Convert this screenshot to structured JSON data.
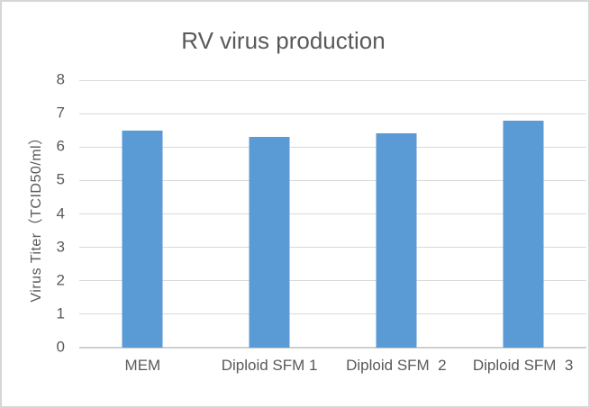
{
  "chart_data": {
    "type": "bar",
    "title": "RV virus production",
    "categories": [
      "MEM",
      "Diploid SFM 1",
      "Diploid SFM  2",
      "Diploid SFM  3"
    ],
    "values": [
      6.5,
      6.3,
      6.4,
      6.8
    ],
    "xlabel": "",
    "ylabel": "Virus Titer（TCID50/ml）",
    "ylim": [
      0,
      8
    ],
    "y_ticks": [
      0,
      1,
      2,
      3,
      4,
      5,
      6,
      7,
      8
    ],
    "grid": true,
    "legend": "none",
    "colors": {
      "bar": "#5b9bd5",
      "text": "#595959",
      "gridline": "#d9d9d9",
      "axis_line": "#cfcfcf",
      "border": "#d6d6d6"
    }
  }
}
